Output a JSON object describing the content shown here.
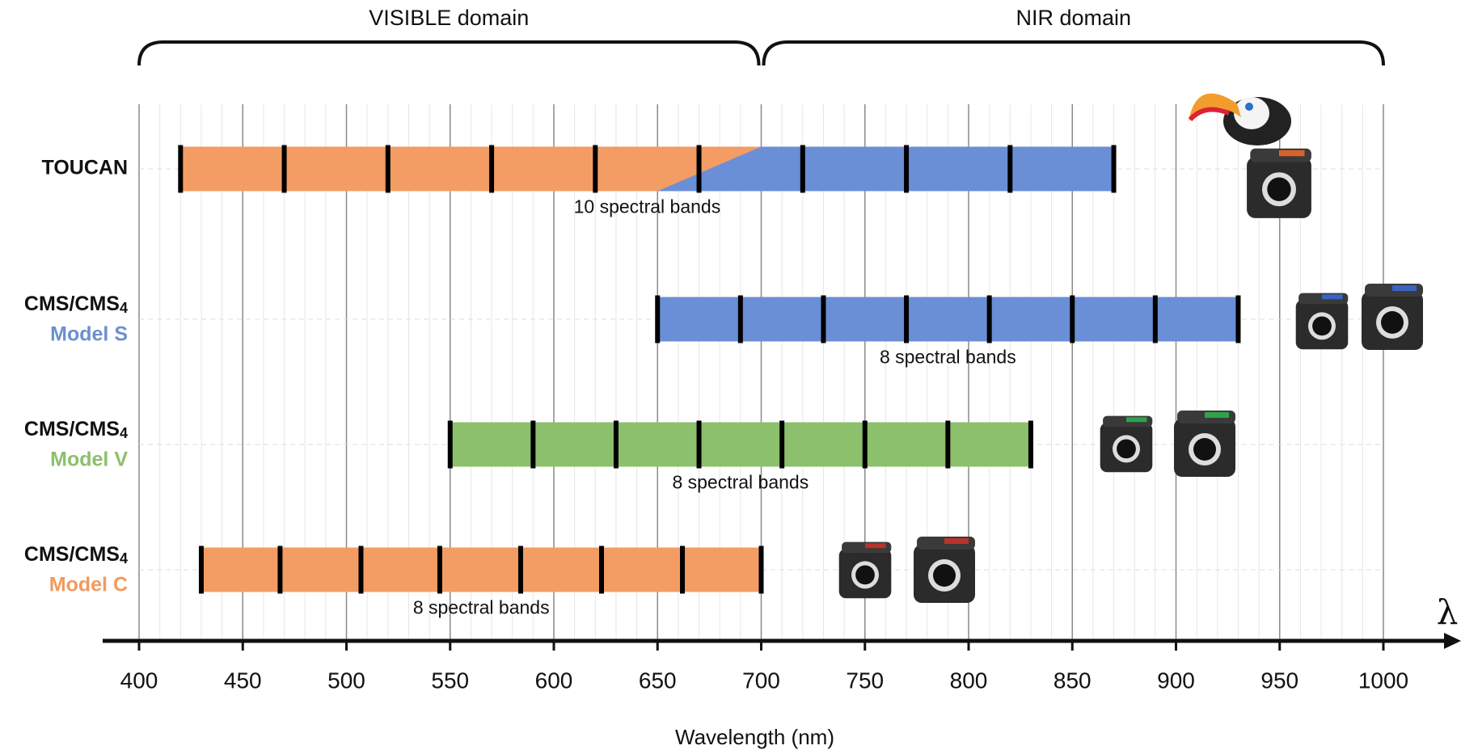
{
  "chart_data": {
    "type": "band-ranges",
    "x_label": "Wavelength (nm)",
    "x_symbol": "λ",
    "xlim": [
      400,
      1000
    ],
    "xticks": [
      400,
      450,
      500,
      550,
      600,
      650,
      700,
      750,
      800,
      850,
      900,
      950,
      1000
    ],
    "domains": [
      {
        "label": "VISIBLE domain",
        "range": [
          400,
          700
        ]
      },
      {
        "label": "NIR domain",
        "range": [
          700,
          1000
        ]
      }
    ],
    "rows": [
      {
        "name": "TOUCAN",
        "boundaries": [
          420,
          470,
          520,
          570,
          620,
          670,
          720,
          770,
          820,
          870
        ],
        "colors": [
          "#f39c63",
          "#6a8fd6"
        ],
        "transition": [
          650,
          700
        ],
        "note": "10 spectral bands"
      },
      {
        "name": "CMS/CMS",
        "name_sub": "4",
        "model": "Model S",
        "model_color": "#6d8fd0",
        "boundaries": [
          650,
          690,
          730,
          770,
          810,
          850,
          890,
          930
        ],
        "colors": [
          "#6a8fd6"
        ],
        "note": "8 spectral bands"
      },
      {
        "name": "CMS/CMS",
        "name_sub": "4",
        "model": "Model V",
        "model_color": "#8cc06c",
        "boundaries": [
          550,
          590,
          630,
          670,
          710,
          750,
          790,
          830
        ],
        "colors": [
          "#8cc06c"
        ],
        "note": "8 spectral bands"
      },
      {
        "name": "CMS/CMS",
        "name_sub": "4",
        "model": "Model C",
        "model_color": "#f39a5c",
        "boundaries": [
          430,
          468,
          507,
          545,
          584,
          623,
          662,
          700
        ],
        "colors": [
          "#f39c63"
        ],
        "note": "8 spectral bands"
      }
    ]
  }
}
